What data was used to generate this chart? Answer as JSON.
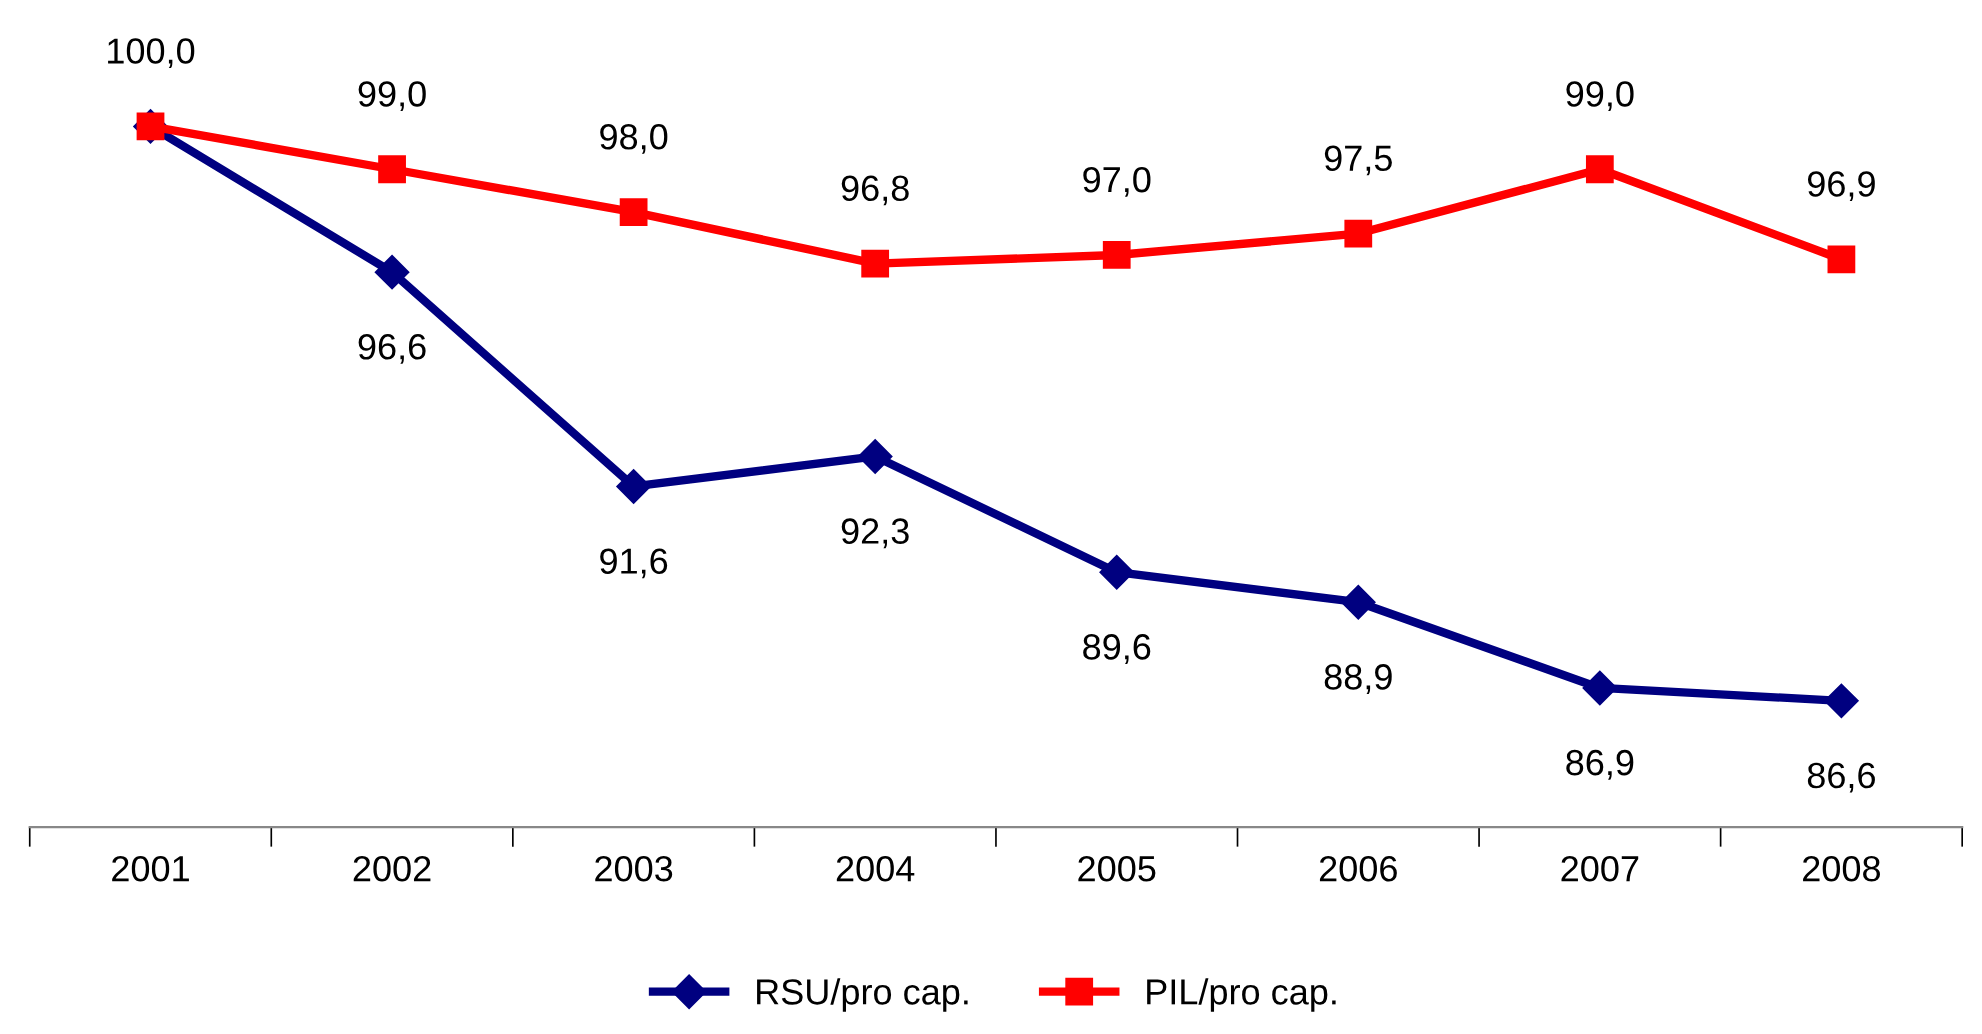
{
  "chart_data": {
    "type": "line",
    "categories": [
      "2001",
      "2002",
      "2003",
      "2004",
      "2005",
      "2006",
      "2007",
      "2008"
    ],
    "series": [
      {
        "name": "RSU/pro cap.",
        "color": "#000080",
        "marker": "diamond",
        "values": [
          100.0,
          96.6,
          91.6,
          92.3,
          89.6,
          88.9,
          86.9,
          86.6
        ],
        "value_labels": [
          null,
          "96,6",
          "91,6",
          "92,3",
          "89,6",
          "88,9",
          "86,9",
          "86,6"
        ]
      },
      {
        "name": "PIL/pro cap.",
        "color": "#ff0000",
        "marker": "square",
        "values": [
          100.0,
          99.0,
          98.0,
          96.8,
          97.0,
          97.5,
          99.0,
          96.9
        ],
        "value_labels": [
          "100,0",
          "99,0",
          "98,0",
          "96,8",
          "97,0",
          "97,5",
          "99,0",
          "96,9"
        ]
      }
    ],
    "legend": "bottom",
    "grid": false
  }
}
